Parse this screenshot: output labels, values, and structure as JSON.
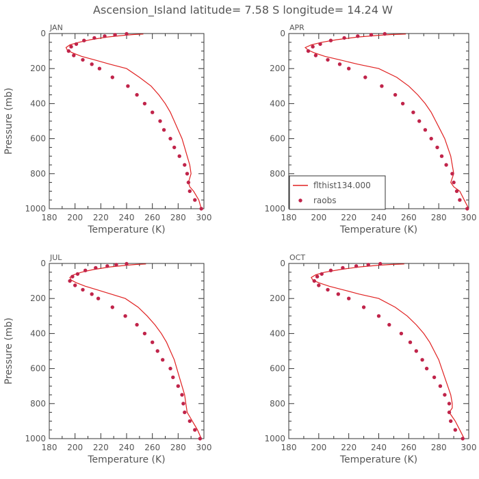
{
  "title": "Ascension_Island   latitude=  7.58 S  longitude=  14.24 W",
  "legend": {
    "model_label": "flthist134.000",
    "obs_label": "raobs",
    "panel_index": 1
  },
  "colors": {
    "model": "#e02020",
    "obs": "#c0244a",
    "axis": "#333333",
    "text": "#555555"
  },
  "chart_data": [
    {
      "type": "line",
      "panel": "JAN",
      "xlabel": "Temperature (K)",
      "ylabel": "Pressure (mb)",
      "xlim": [
        180,
        300
      ],
      "ylim": [
        1000,
        0
      ],
      "xticks": [
        180,
        200,
        220,
        240,
        260,
        280,
        300
      ],
      "yticks": [
        0,
        200,
        400,
        600,
        800,
        1000
      ],
      "series": [
        {
          "name": "flthist134.000",
          "kind": "line",
          "points": [
            [
              253,
              3
            ],
            [
              245,
              6
            ],
            [
              238,
              10
            ],
            [
              225,
              20
            ],
            [
              212,
              35
            ],
            [
              203,
              50
            ],
            [
              196,
              65
            ],
            [
              193,
              80
            ],
            [
              194,
              95
            ],
            [
              198,
              110
            ],
            [
              205,
              130
            ],
            [
              215,
              150
            ],
            [
              227,
              175
            ],
            [
              240,
              200
            ],
            [
              250,
              250
            ],
            [
              259,
              300
            ],
            [
              265,
              350
            ],
            [
              270,
              400
            ],
            [
              274,
              450
            ],
            [
              277,
              500
            ],
            [
              280,
              550
            ],
            [
              283,
              600
            ],
            [
              285,
              650
            ],
            [
              287,
              700
            ],
            [
              289,
              750
            ],
            [
              290,
              800
            ],
            [
              288,
              850
            ],
            [
              289,
              875
            ],
            [
              292,
              900
            ],
            [
              296,
              950
            ],
            [
              298,
              1000
            ]
          ]
        },
        {
          "name": "raobs",
          "kind": "scatter",
          "points": [
            [
              240,
              2
            ],
            [
              231,
              7
            ],
            [
              223,
              15
            ],
            [
              215,
              25
            ],
            [
              207,
              40
            ],
            [
              201,
              60
            ],
            [
              197,
              75
            ],
            [
              195,
              100
            ],
            [
              199,
              125
            ],
            [
              206,
              150
            ],
            [
              213,
              175
            ],
            [
              219,
              200
            ],
            [
              229,
              250
            ],
            [
              241,
              300
            ],
            [
              248,
              350
            ],
            [
              254,
              400
            ],
            [
              260,
              450
            ],
            [
              266,
              500
            ],
            [
              269,
              550
            ],
            [
              274,
              600
            ],
            [
              277,
              650
            ],
            [
              281,
              700
            ],
            [
              285,
              750
            ],
            [
              287,
              800
            ],
            [
              288,
              850
            ],
            [
              289,
              900
            ],
            [
              293,
              950
            ],
            [
              298,
              1000
            ]
          ]
        }
      ]
    },
    {
      "type": "line",
      "panel": "APR",
      "xlabel": "Temperature (K)",
      "ylabel": "",
      "xlim": [
        180,
        300
      ],
      "ylim": [
        1000,
        0
      ],
      "xticks": [
        180,
        200,
        220,
        240,
        260,
        280,
        300
      ],
      "yticks": [
        0,
        200,
        400,
        600,
        800,
        1000
      ],
      "series": [
        {
          "name": "flthist134.000",
          "kind": "line",
          "points": [
            [
              258,
              3
            ],
            [
              248,
              6
            ],
            [
              240,
              10
            ],
            [
              226,
              20
            ],
            [
              212,
              35
            ],
            [
              202,
              50
            ],
            [
              195,
              65
            ],
            [
              191,
              80
            ],
            [
              193,
              95
            ],
            [
              197,
              110
            ],
            [
              204,
              130
            ],
            [
              214,
              150
            ],
            [
              226,
              175
            ],
            [
              240,
              200
            ],
            [
              252,
              250
            ],
            [
              260,
              300
            ],
            [
              266,
              350
            ],
            [
              271,
              400
            ],
            [
              275,
              450
            ],
            [
              278,
              500
            ],
            [
              281,
              550
            ],
            [
              284,
              600
            ],
            [
              286,
              650
            ],
            [
              288,
              700
            ],
            [
              289,
              750
            ],
            [
              290,
              800
            ],
            [
              289,
              825
            ],
            [
              288,
              850
            ],
            [
              290,
              875
            ],
            [
              294,
              900
            ],
            [
              297,
              950
            ],
            [
              300,
              1000
            ]
          ]
        },
        {
          "name": "raobs",
          "kind": "scatter",
          "points": [
            [
              244,
              2
            ],
            [
              235,
              7
            ],
            [
              226,
              15
            ],
            [
              217,
              25
            ],
            [
              208,
              40
            ],
            [
              201,
              60
            ],
            [
              196,
              75
            ],
            [
              193,
              100
            ],
            [
              198,
              125
            ],
            [
              206,
              150
            ],
            [
              214,
              175
            ],
            [
              220,
              200
            ],
            [
              231,
              250
            ],
            [
              242,
              300
            ],
            [
              251,
              350
            ],
            [
              256,
              400
            ],
            [
              263,
              450
            ],
            [
              267,
              500
            ],
            [
              271,
              550
            ],
            [
              275,
              600
            ],
            [
              279,
              650
            ],
            [
              282,
              700
            ],
            [
              285,
              750
            ],
            [
              289,
              800
            ],
            [
              290,
              850
            ],
            [
              292,
              900
            ],
            [
              294,
              950
            ],
            [
              299,
              1000
            ]
          ]
        }
      ]
    },
    {
      "type": "line",
      "panel": "JUL",
      "xlabel": "Temperature (K)",
      "ylabel": "Pressure (mb)",
      "xlim": [
        180,
        300
      ],
      "ylim": [
        1000,
        0
      ],
      "xticks": [
        180,
        200,
        220,
        240,
        260,
        280,
        300
      ],
      "yticks": [
        0,
        200,
        400,
        600,
        800,
        1000
      ],
      "series": [
        {
          "name": "flthist134.000",
          "kind": "line",
          "points": [
            [
              255,
              3
            ],
            [
              247,
              6
            ],
            [
              240,
              10
            ],
            [
              227,
              20
            ],
            [
              214,
              35
            ],
            [
              205,
              50
            ],
            [
              199,
              65
            ],
            [
              196,
              80
            ],
            [
              197,
              95
            ],
            [
              201,
              110
            ],
            [
              208,
              130
            ],
            [
              217,
              150
            ],
            [
              228,
              175
            ],
            [
              239,
              200
            ],
            [
              249,
              250
            ],
            [
              256,
              300
            ],
            [
              262,
              350
            ],
            [
              267,
              400
            ],
            [
              271,
              450
            ],
            [
              274,
              500
            ],
            [
              277,
              550
            ],
            [
              279,
              600
            ],
            [
              281,
              650
            ],
            [
              283,
              700
            ],
            [
              285,
              750
            ],
            [
              286,
              800
            ],
            [
              287,
              850
            ],
            [
              289,
              875
            ],
            [
              291,
              900
            ],
            [
              295,
              950
            ],
            [
              298,
              1000
            ]
          ]
        },
        {
          "name": "raobs",
          "kind": "scatter",
          "points": [
            [
              240,
              2
            ],
            [
              232,
              7
            ],
            [
              225,
              15
            ],
            [
              216,
              25
            ],
            [
              208,
              40
            ],
            [
              202,
              60
            ],
            [
              198,
              75
            ],
            [
              196,
              100
            ],
            [
              200,
              125
            ],
            [
              206,
              150
            ],
            [
              213,
              175
            ],
            [
              218,
              200
            ],
            [
              229,
              250
            ],
            [
              239,
              300
            ],
            [
              248,
              350
            ],
            [
              254,
              400
            ],
            [
              260,
              450
            ],
            [
              264,
              500
            ],
            [
              268,
              550
            ],
            [
              274,
              600
            ],
            [
              276,
              650
            ],
            [
              280,
              700
            ],
            [
              283,
              750
            ],
            [
              284,
              800
            ],
            [
              285,
              850
            ],
            [
              289,
              900
            ],
            [
              293,
              950
            ],
            [
              297,
              1000
            ]
          ]
        }
      ]
    },
    {
      "type": "line",
      "panel": "OCT",
      "xlabel": "Temperature (K)",
      "ylabel": "",
      "xlim": [
        180,
        300
      ],
      "ylim": [
        1000,
        0
      ],
      "xticks": [
        180,
        200,
        220,
        240,
        260,
        280,
        300
      ],
      "yticks": [
        0,
        200,
        400,
        600,
        800,
        1000
      ],
      "series": [
        {
          "name": "flthist134.000",
          "kind": "line",
          "points": [
            [
              257,
              3
            ],
            [
              248,
              6
            ],
            [
              240,
              10
            ],
            [
              227,
              20
            ],
            [
              214,
              35
            ],
            [
              204,
              50
            ],
            [
              198,
              65
            ],
            [
              195,
              80
            ],
            [
              196,
              95
            ],
            [
              200,
              110
            ],
            [
              207,
              130
            ],
            [
              216,
              150
            ],
            [
              227,
              175
            ],
            [
              240,
              200
            ],
            [
              251,
              250
            ],
            [
              259,
              300
            ],
            [
              265,
              350
            ],
            [
              270,
              400
            ],
            [
              274,
              450
            ],
            [
              277,
              500
            ],
            [
              280,
              550
            ],
            [
              282,
              600
            ],
            [
              284,
              650
            ],
            [
              286,
              700
            ],
            [
              288,
              750
            ],
            [
              289,
              800
            ],
            [
              289,
              825
            ],
            [
              287,
              850
            ],
            [
              289,
              875
            ],
            [
              291,
              900
            ],
            [
              294,
              950
            ],
            [
              297,
              1000
            ]
          ]
        },
        {
          "name": "raobs",
          "kind": "scatter",
          "points": [
            [
              241,
              2
            ],
            [
              233,
              7
            ],
            [
              225,
              15
            ],
            [
              216,
              25
            ],
            [
              208,
              40
            ],
            [
              202,
              60
            ],
            [
              199,
              75
            ],
            [
              197,
              100
            ],
            [
              200,
              125
            ],
            [
              206,
              150
            ],
            [
              213,
              175
            ],
            [
              220,
              200
            ],
            [
              230,
              250
            ],
            [
              240,
              300
            ],
            [
              247,
              350
            ],
            [
              255,
              400
            ],
            [
              261,
              450
            ],
            [
              265,
              500
            ],
            [
              269,
              550
            ],
            [
              272,
              600
            ],
            [
              277,
              650
            ],
            [
              281,
              700
            ],
            [
              284,
              750
            ],
            [
              287,
              800
            ],
            [
              287,
              850
            ],
            [
              288,
              900
            ],
            [
              291,
              950
            ],
            [
              296,
              1000
            ]
          ]
        }
      ]
    }
  ]
}
